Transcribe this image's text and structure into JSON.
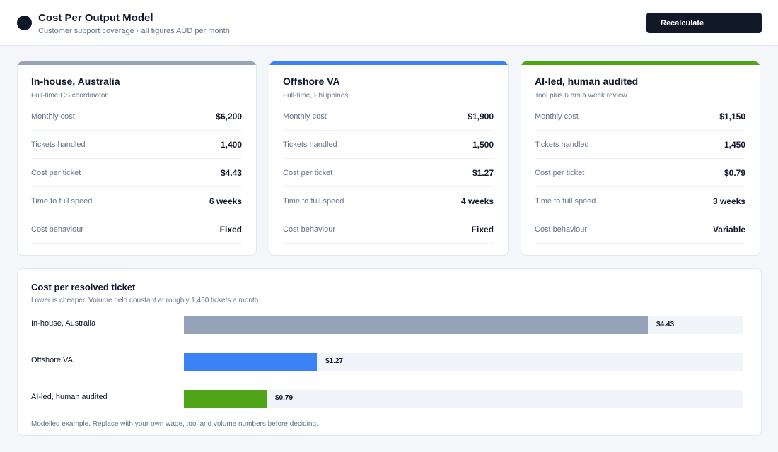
{
  "header": {
    "title": "Cost Per Output Model",
    "subtitle": "Customer support coverage  ·  all figures AUD per month",
    "recalculate_label": "Recalculate"
  },
  "cards": [
    {
      "title": "In-house, Australia",
      "subtitle": "Full-time CS coordinator",
      "accent": "#94a3b8",
      "metrics": [
        {
          "label": "Monthly cost",
          "value": "$6,200"
        },
        {
          "label": "Tickets handled",
          "value": "1,400"
        },
        {
          "label": "Cost per ticket",
          "value": "$4.43"
        },
        {
          "label": "Time to full speed",
          "value": "6 weeks"
        },
        {
          "label": "Cost behaviour",
          "value": "Fixed"
        }
      ]
    },
    {
      "title": "Offshore VA",
      "subtitle": "Full-time, Philippines",
      "accent": "#3b82f6",
      "metrics": [
        {
          "label": "Monthly cost",
          "value": "$1,900"
        },
        {
          "label": "Tickets handled",
          "value": "1,500"
        },
        {
          "label": "Cost per ticket",
          "value": "$1.27"
        },
        {
          "label": "Time to full speed",
          "value": "4 weeks"
        },
        {
          "label": "Cost behaviour",
          "value": "Fixed"
        }
      ]
    },
    {
      "title": "AI-led, human audited",
      "subtitle": "Tool plus 6 hrs a week review",
      "accent": "#4fa517",
      "metrics": [
        {
          "label": "Monthly cost",
          "value": "$1,150"
        },
        {
          "label": "Tickets handled",
          "value": "1,450"
        },
        {
          "label": "Cost per ticket",
          "value": "$0.79"
        },
        {
          "label": "Time to full speed",
          "value": "3 weeks"
        },
        {
          "label": "Cost behaviour",
          "value": "Variable"
        }
      ]
    }
  ],
  "comparison": {
    "title": "Cost per resolved ticket",
    "subtitle": "Lower is cheaper. Volume held constant at roughly 1,450 tickets a month.",
    "note": "Modelled example. Replace with your own wage, tool and volume numbers before deciding."
  },
  "chart_data": {
    "type": "bar",
    "orientation": "horizontal",
    "title": "Cost per resolved ticket",
    "categories": [
      "In-house, Australia",
      "Offshore VA",
      "AI-led, human audited"
    ],
    "values": [
      4.43,
      1.27,
      0.79
    ],
    "value_labels": [
      "$4.43",
      "$1.27",
      "$0.79"
    ],
    "colors": [
      "#94a3b8",
      "#3b82f6",
      "#4fa517"
    ],
    "xlim": [
      0,
      5.34
    ]
  }
}
